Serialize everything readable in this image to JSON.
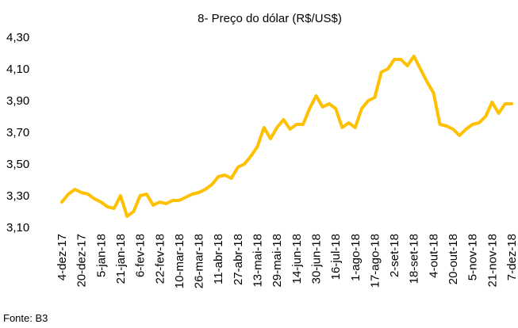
{
  "chart_data": {
    "type": "line",
    "title": "8- Preço do dólar (R$/US$)",
    "source": "Fonte: B3",
    "categories": [
      "4-dez-17",
      null,
      null,
      "20-dez-17",
      null,
      null,
      "5-jan-18",
      null,
      null,
      "21-jan-18",
      null,
      null,
      "6-fev-18",
      null,
      null,
      "22-fev-18",
      null,
      null,
      "10-mar-18",
      null,
      null,
      "26-mar-18",
      null,
      null,
      "11-abr-18",
      null,
      null,
      "27-abr-18",
      null,
      null,
      "13-mai-18",
      null,
      null,
      "29-mai-18",
      null,
      null,
      "14-jun-18",
      null,
      null,
      "30-jun-18",
      null,
      null,
      "16-jul-18",
      null,
      null,
      "1-ago-18",
      null,
      null,
      "17-ago-18",
      null,
      null,
      "2-set-18",
      null,
      null,
      "18-set-18",
      null,
      null,
      "4-out-18",
      null,
      null,
      "20-out-18",
      null,
      null,
      "5-nov-18",
      null,
      null,
      "21-nov-18",
      null,
      null,
      "7-dez-18"
    ],
    "values": [
      3.26,
      3.31,
      3.34,
      3.32,
      3.31,
      3.28,
      3.26,
      3.23,
      3.22,
      3.3,
      3.17,
      3.2,
      3.3,
      3.31,
      3.24,
      3.26,
      3.25,
      3.27,
      3.27,
      3.29,
      3.31,
      3.32,
      3.34,
      3.37,
      3.42,
      3.43,
      3.41,
      3.48,
      3.5,
      3.55,
      3.61,
      3.73,
      3.66,
      3.73,
      3.78,
      3.72,
      3.75,
      3.75,
      3.85,
      3.93,
      3.86,
      3.88,
      3.85,
      3.73,
      3.76,
      3.73,
      3.85,
      3.9,
      3.92,
      4.08,
      4.1,
      4.16,
      4.16,
      4.12,
      4.18,
      4.1,
      4.02,
      3.95,
      3.75,
      3.74,
      3.72,
      3.68,
      3.72,
      3.75,
      3.76,
      3.8,
      3.89,
      3.82,
      3.88,
      3.88
    ],
    "color": "#FFC000",
    "ylim": [
      3.1,
      4.3
    ],
    "yticks": [
      {
        "value": 3.1,
        "label": "3,10"
      },
      {
        "value": 3.3,
        "label": "3,30"
      },
      {
        "value": 3.5,
        "label": "3,50"
      },
      {
        "value": 3.7,
        "label": "3,70"
      },
      {
        "value": 3.9,
        "label": "3,90"
      },
      {
        "value": 4.1,
        "label": "4,10"
      },
      {
        "value": 4.3,
        "label": "4,30"
      }
    ],
    "grid": false
  }
}
